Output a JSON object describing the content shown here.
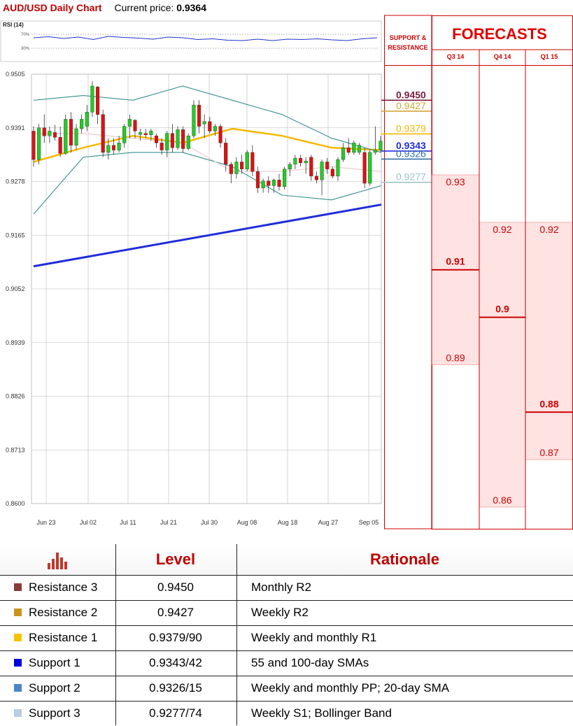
{
  "header": {
    "title": "AUD/USD Daily Chart",
    "price_label": "Current price:",
    "price_value": "0.9364"
  },
  "chart_data": [
    {
      "type": "candlestick",
      "title": "AUD/USD Daily Chart",
      "y_ticks": [
        "0.9505",
        "0.9391",
        "0.9278",
        "0.9165",
        "0.9052",
        "0.8939",
        "0.8826",
        "0.8713",
        "0.8600"
      ],
      "x_ticks": [
        "Jun 23",
        "Jul 02",
        "Jul 11",
        "Jul 21",
        "Jul 30",
        "Aug 08",
        "Aug 18",
        "Aug 27",
        "Sep 05"
      ],
      "ylim": [
        0.86,
        0.9505
      ],
      "grid": true,
      "candles": [
        {
          "o": 0.9385,
          "h": 0.9395,
          "l": 0.931,
          "c": 0.9325
        },
        {
          "o": 0.9325,
          "h": 0.94,
          "l": 0.9315,
          "c": 0.9392
        },
        {
          "o": 0.9392,
          "h": 0.942,
          "l": 0.936,
          "c": 0.9375
        },
        {
          "o": 0.9375,
          "h": 0.9395,
          "l": 0.936,
          "c": 0.9385
        },
        {
          "o": 0.9382,
          "h": 0.9398,
          "l": 0.9365,
          "c": 0.9372
        },
        {
          "o": 0.9372,
          "h": 0.9395,
          "l": 0.933,
          "c": 0.9338
        },
        {
          "o": 0.9338,
          "h": 0.942,
          "l": 0.9335,
          "c": 0.941
        },
        {
          "o": 0.941,
          "h": 0.9425,
          "l": 0.934,
          "c": 0.9355
        },
        {
          "o": 0.9355,
          "h": 0.94,
          "l": 0.9345,
          "c": 0.939
        },
        {
          "o": 0.939,
          "h": 0.942,
          "l": 0.938,
          "c": 0.941
        },
        {
          "o": 0.9395,
          "h": 0.944,
          "l": 0.9385,
          "c": 0.9425
        },
        {
          "o": 0.9425,
          "h": 0.949,
          "l": 0.9415,
          "c": 0.948
        },
        {
          "o": 0.9478,
          "h": 0.948,
          "l": 0.94,
          "c": 0.942
        },
        {
          "o": 0.942,
          "h": 0.943,
          "l": 0.933,
          "c": 0.934
        },
        {
          "o": 0.934,
          "h": 0.937,
          "l": 0.9325,
          "c": 0.9355
        },
        {
          "o": 0.9355,
          "h": 0.937,
          "l": 0.9335,
          "c": 0.9345
        },
        {
          "o": 0.9345,
          "h": 0.9375,
          "l": 0.934,
          "c": 0.936
        },
        {
          "o": 0.936,
          "h": 0.94,
          "l": 0.935,
          "c": 0.9395
        },
        {
          "o": 0.9395,
          "h": 0.942,
          "l": 0.937,
          "c": 0.941
        },
        {
          "o": 0.9408,
          "h": 0.941,
          "l": 0.937,
          "c": 0.9385
        },
        {
          "o": 0.9378,
          "h": 0.939,
          "l": 0.9365,
          "c": 0.9382
        },
        {
          "o": 0.938,
          "h": 0.939,
          "l": 0.937,
          "c": 0.9377
        },
        {
          "o": 0.9377,
          "h": 0.939,
          "l": 0.9365,
          "c": 0.9385
        },
        {
          "o": 0.9375,
          "h": 0.938,
          "l": 0.935,
          "c": 0.936
        },
        {
          "o": 0.936,
          "h": 0.937,
          "l": 0.9335,
          "c": 0.9345
        },
        {
          "o": 0.9345,
          "h": 0.9385,
          "l": 0.933,
          "c": 0.938
        },
        {
          "o": 0.938,
          "h": 0.94,
          "l": 0.934,
          "c": 0.935
        },
        {
          "o": 0.935,
          "h": 0.9395,
          "l": 0.9345,
          "c": 0.9388
        },
        {
          "o": 0.9388,
          "h": 0.9395,
          "l": 0.934,
          "c": 0.9348
        },
        {
          "o": 0.9348,
          "h": 0.938,
          "l": 0.9345,
          "c": 0.9375
        },
        {
          "o": 0.9375,
          "h": 0.945,
          "l": 0.937,
          "c": 0.944
        },
        {
          "o": 0.944,
          "h": 0.945,
          "l": 0.938,
          "c": 0.9395
        },
        {
          "o": 0.94,
          "h": 0.942,
          "l": 0.937,
          "c": 0.9405
        },
        {
          "o": 0.9405,
          "h": 0.9415,
          "l": 0.938,
          "c": 0.9385
        },
        {
          "o": 0.9385,
          "h": 0.94,
          "l": 0.9375,
          "c": 0.9395
        },
        {
          "o": 0.9395,
          "h": 0.94,
          "l": 0.935,
          "c": 0.936
        },
        {
          "o": 0.936,
          "h": 0.937,
          "l": 0.93,
          "c": 0.9315
        },
        {
          "o": 0.9315,
          "h": 0.932,
          "l": 0.9275,
          "c": 0.9295
        },
        {
          "o": 0.9295,
          "h": 0.933,
          "l": 0.9285,
          "c": 0.932
        },
        {
          "o": 0.932,
          "h": 0.9335,
          "l": 0.9295,
          "c": 0.9305
        },
        {
          "o": 0.9305,
          "h": 0.9345,
          "l": 0.93,
          "c": 0.934
        },
        {
          "o": 0.934,
          "h": 0.9355,
          "l": 0.929,
          "c": 0.93
        },
        {
          "o": 0.93,
          "h": 0.931,
          "l": 0.9255,
          "c": 0.9265
        },
        {
          "o": 0.9265,
          "h": 0.9285,
          "l": 0.9255,
          "c": 0.928
        },
        {
          "o": 0.928,
          "h": 0.929,
          "l": 0.9255,
          "c": 0.927
        },
        {
          "o": 0.927,
          "h": 0.9285,
          "l": 0.9255,
          "c": 0.9282
        },
        {
          "o": 0.9282,
          "h": 0.9295,
          "l": 0.926,
          "c": 0.9268
        },
        {
          "o": 0.9268,
          "h": 0.931,
          "l": 0.9262,
          "c": 0.9305
        },
        {
          "o": 0.9305,
          "h": 0.932,
          "l": 0.929,
          "c": 0.9315
        },
        {
          "o": 0.9315,
          "h": 0.9335,
          "l": 0.9305,
          "c": 0.9328
        },
        {
          "o": 0.9328,
          "h": 0.9335,
          "l": 0.931,
          "c": 0.9318
        },
        {
          "o": 0.9318,
          "h": 0.933,
          "l": 0.9295,
          "c": 0.9322
        },
        {
          "o": 0.933,
          "h": 0.9335,
          "l": 0.928,
          "c": 0.929
        },
        {
          "o": 0.929,
          "h": 0.93,
          "l": 0.9275,
          "c": 0.9282
        },
        {
          "o": 0.9282,
          "h": 0.9325,
          "l": 0.925,
          "c": 0.932
        },
        {
          "o": 0.932,
          "h": 0.9328,
          "l": 0.9295,
          "c": 0.9305
        },
        {
          "o": 0.9305,
          "h": 0.931,
          "l": 0.9285,
          "c": 0.929
        },
        {
          "o": 0.929,
          "h": 0.933,
          "l": 0.928,
          "c": 0.9325
        },
        {
          "o": 0.9325,
          "h": 0.936,
          "l": 0.932,
          "c": 0.935
        },
        {
          "o": 0.935,
          "h": 0.937,
          "l": 0.9335,
          "c": 0.934
        },
        {
          "o": 0.934,
          "h": 0.9365,
          "l": 0.9335,
          "c": 0.936
        },
        {
          "o": 0.934,
          "h": 0.936,
          "l": 0.9335,
          "c": 0.9355
        },
        {
          "o": 0.934,
          "h": 0.935,
          "l": 0.9265,
          "c": 0.9275
        },
        {
          "o": 0.9275,
          "h": 0.9345,
          "l": 0.927,
          "c": 0.934
        },
        {
          "o": 0.934,
          "h": 0.9395,
          "l": 0.9335,
          "c": 0.9345
        },
        {
          "o": 0.9345,
          "h": 0.9375,
          "l": 0.934,
          "c": 0.9364
        }
      ],
      "overlays": [
        {
          "kind": "sma-55-100",
          "color": "#f5b800",
          "values": [
            0.932,
            0.935,
            0.9375,
            0.936,
            0.939,
            0.9375,
            0.935,
            0.9345
          ]
        },
        {
          "kind": "long-sma",
          "color": "#1f2ddb",
          "values": [
            0.91,
            0.923
          ]
        },
        {
          "kind": "bollinger-upper",
          "color": "#3a8f8f",
          "values": [
            0.945,
            0.946,
            0.945,
            0.948,
            0.945,
            0.942,
            0.937,
            0.934
          ]
        },
        {
          "kind": "bollinger-lower",
          "color": "#3a8f8f",
          "values": [
            0.921,
            0.933,
            0.934,
            0.934,
            0.931,
            0.925,
            0.924,
            0.927
          ]
        },
        {
          "kind": "sma-20",
          "color": "#e6c9c9",
          "values": [
            0.938,
            0.938,
            0.937,
            0.936,
            0.93,
            0.93,
            0.931,
            0.93
          ]
        }
      ]
    },
    {
      "type": "line",
      "title": "RSI (14)",
      "y_ticks": [
        "70%",
        "30%"
      ],
      "ylim": [
        0,
        100
      ],
      "values": [
        60,
        63,
        58,
        62,
        55,
        64,
        61,
        59,
        56,
        62,
        60,
        55,
        57,
        53,
        52,
        56,
        52,
        56,
        55,
        57,
        54,
        52,
        57,
        60
      ]
    },
    {
      "type": "bar",
      "title": "FORECASTS",
      "side_label": "SUPPORT & RESISTANCE",
      "columns": [
        {
          "name": "Q3 14",
          "median": "0.91",
          "high": "0.93",
          "low": "0.89",
          "median_v": 0.91,
          "high_v": 0.93,
          "low_v": 0.89
        },
        {
          "name": "Q4 14",
          "median": "0.9",
          "high": "0.92",
          "low": "0.86",
          "median_v": 0.9,
          "high_v": 0.92,
          "low_v": 0.86
        },
        {
          "name": "Q1 15",
          "median": "0.88",
          "high": "0.92",
          "low": "0.87",
          "median_v": 0.88,
          "high_v": 0.92,
          "low_v": 0.87
        }
      ]
    }
  ],
  "sr_levels": [
    {
      "name": "Resistance 3",
      "label": "0.9450",
      "value": 0.945,
      "color": "#7b1a3c"
    },
    {
      "name": "Resistance 2",
      "label": "0.9427",
      "value": 0.9427,
      "color": "#d4a53a"
    },
    {
      "name": "Resistance 1",
      "label": "0.9379",
      "value": 0.9379,
      "color": "#f5b800"
    },
    {
      "name": "Support 1",
      "label": "0.9343",
      "value": 0.9343,
      "color": "#1f2ddb"
    },
    {
      "name": "Support 2",
      "label": "0.9326",
      "value": 0.9326,
      "color": "#2e6ea6"
    },
    {
      "name": "Support 3",
      "label": "0.9277",
      "value": 0.9277,
      "color": "#9cc3c8"
    }
  ],
  "table": {
    "headers": {
      "level": "Level",
      "rationale": "Rationale"
    },
    "icon": "bar-chart-icon",
    "rows": [
      {
        "name": "Resistance 3",
        "level": "0.9450",
        "rationale": "Monthly R2",
        "color": "#8b3a3a"
      },
      {
        "name": "Resistance 2",
        "level": "0.9427",
        "rationale": "Weekly R2",
        "color": "#c9951c"
      },
      {
        "name": "Resistance 1",
        "level": "0.9379/90",
        "rationale": "Weekly and monthly R1",
        "color": "#f5c400"
      },
      {
        "name": "Support 1",
        "level": "0.9343/42",
        "rationale": "55 and 100-day SMAs",
        "color": "#0000dd"
      },
      {
        "name": "Support 2",
        "level": "0.9326/15",
        "rationale": "Weekly and monthly PP; 20-day SMA",
        "color": "#4a86c8"
      },
      {
        "name": "Support 3",
        "level": "0.9277/74",
        "rationale": "Weekly S1; Bollinger Band",
        "color": "#b8cde4"
      }
    ]
  }
}
